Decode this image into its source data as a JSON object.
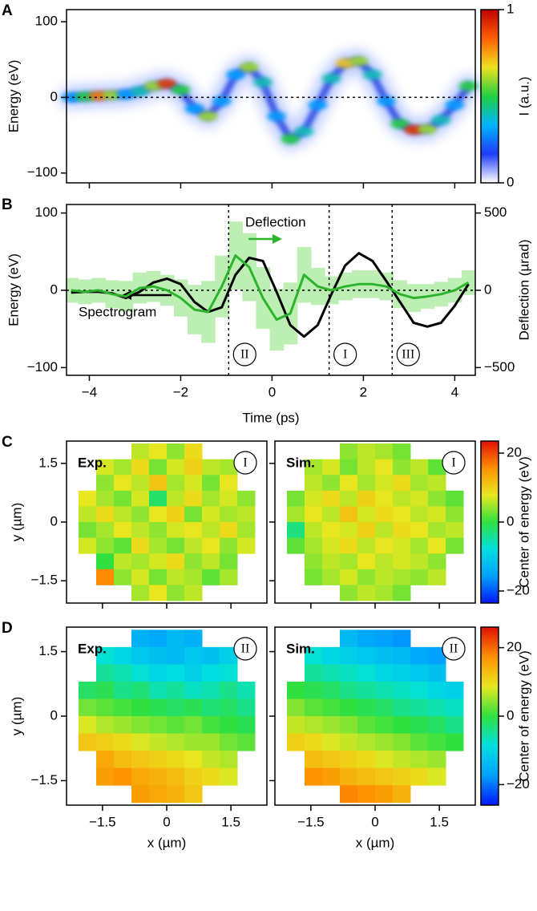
{
  "chart_data": [
    {
      "type": "spectrogram",
      "panel_label": "A",
      "ylabel": "Energy (eV)",
      "x": [
        -4.4,
        -4.1,
        -3.8,
        -3.5,
        -3.2,
        -2.9,
        -2.6,
        -2.3,
        -2.0,
        -1.7,
        -1.4,
        -1.1,
        -0.8,
        -0.5,
        -0.2,
        0.1,
        0.4,
        0.7,
        1.0,
        1.3,
        1.6,
        1.9,
        2.2,
        2.5,
        2.8,
        3.1,
        3.4,
        3.7,
        4.0,
        4.3
      ],
      "values": [
        0,
        1,
        2,
        3,
        4,
        8,
        15,
        18,
        10,
        -15,
        -25,
        -5,
        30,
        40,
        20,
        -25,
        -55,
        -45,
        -10,
        25,
        45,
        48,
        30,
        -5,
        -35,
        -43,
        -42,
        -30,
        -10,
        15
      ],
      "intensity": [
        0.3,
        0.5,
        0.8,
        0.6,
        0.3,
        0.4,
        0.6,
        0.9,
        0.5,
        0.3,
        0.6,
        0.3,
        0.3,
        0.6,
        0.4,
        0.3,
        0.5,
        0.4,
        0.3,
        0.4,
        0.7,
        0.6,
        0.4,
        0.3,
        0.5,
        0.9,
        0.6,
        0.4,
        0.3,
        0.5
      ],
      "xlim": [
        -4.5,
        4.45
      ],
      "xticks": [
        -4,
        -2,
        0,
        2,
        4
      ],
      "ylim": [
        -113,
        116
      ],
      "yticks": [
        {
          "value": -100,
          "label": "−100"
        },
        0,
        100
      ],
      "colorbar": {
        "label": "I (a.u.)",
        "lim": [
          0,
          1
        ],
        "ticks": [
          0,
          1
        ],
        "colormap": [
          "#ffffff",
          "#1e3cff",
          "#00b4ff",
          "#20d040",
          "#f0e020",
          "#ff6000",
          "#c00000"
        ]
      }
    },
    {
      "type": "line",
      "panel_label": "B",
      "xlabel": "Time (ps)",
      "ylabel": "Energy (eV)",
      "y2label": "Deflection (µrad)",
      "x": [
        -4.4,
        -4.1,
        -3.8,
        -3.5,
        -3.2,
        -2.9,
        -2.6,
        -2.3,
        -2.0,
        -1.7,
        -1.4,
        -1.1,
        -0.8,
        -0.5,
        -0.2,
        0.1,
        0.4,
        0.7,
        1.0,
        1.3,
        1.6,
        1.9,
        2.2,
        2.5,
        2.8,
        3.1,
        3.4,
        3.7,
        4.0,
        4.3
      ],
      "series": [
        {
          "name": "Spectrogram",
          "color": "#000000",
          "values": [
            -3,
            -2,
            -2,
            -4,
            -10,
            -2,
            10,
            15,
            8,
            -15,
            -28,
            -22,
            20,
            42,
            38,
            -2,
            -45,
            -60,
            -45,
            -5,
            32,
            48,
            38,
            12,
            -15,
            -42,
            -47,
            -42,
            -20,
            8
          ]
        },
        {
          "name": "Deflection",
          "color": "#2cb52c",
          "band_color": "#bdeeb4",
          "axis": "y2",
          "values": [
            0,
            -10,
            0,
            -25,
            -40,
            15,
            25,
            0,
            -50,
            -125,
            -140,
            25,
            225,
            150,
            -50,
            -190,
            -150,
            100,
            25,
            0,
            25,
            40,
            40,
            25,
            -25,
            -50,
            -40,
            -25,
            0,
            50
          ],
          "errors": [
            80,
            80,
            80,
            90,
            100,
            100,
            100,
            100,
            120,
            160,
            200,
            200,
            220,
            220,
            200,
            200,
            200,
            180,
            120,
            90,
            90,
            90,
            90,
            90,
            90,
            90,
            80,
            80,
            80,
            80
          ]
        }
      ],
      "xlim": [
        -4.5,
        4.45
      ],
      "xticks": [
        {
          "value": -4,
          "label": "−4"
        },
        {
          "value": -2,
          "label": "−2"
        },
        0,
        2,
        4
      ],
      "ylim": [
        -110,
        111
      ],
      "yticks": [
        {
          "value": -100,
          "label": "−100"
        },
        0,
        100
      ],
      "y2lim": [
        -550,
        555
      ],
      "y2ticks": [
        {
          "value": -500,
          "label": "−500"
        },
        0,
        500
      ],
      "markers": [
        {
          "x": -0.95,
          "label": "II"
        },
        {
          "x": 1.25,
          "label": "I"
        },
        {
          "x": 2.63,
          "label": "III"
        }
      ]
    },
    {
      "type": "heatmap",
      "panel_label": "C",
      "title": "Exp.",
      "annotation": "I",
      "ylabel": "y (µm)",
      "xlim": [
        -2.34,
        2.34
      ],
      "xticks": [
        {
          "value": -1.5,
          "label": "−1.5"
        },
        0,
        1.5
      ],
      "ylim": [
        -2.07,
        2.07
      ],
      "yticks": [
        {
          "value": -1.5,
          "label": "−1.5"
        },
        0,
        1.5
      ],
      "grid": [
        [
          null,
          null,
          null,
          6,
          8,
          4,
          9,
          null,
          null,
          null
        ],
        [
          null,
          7,
          5,
          9,
          3,
          7,
          10,
          6,
          5,
          null
        ],
        [
          null,
          4,
          8,
          6,
          11,
          5,
          7,
          3,
          8,
          null
        ],
        [
          8,
          5,
          3,
          7,
          -2,
          6,
          9,
          5,
          7,
          4
        ],
        [
          6,
          9,
          6,
          4,
          8,
          10,
          3,
          7,
          5,
          6
        ],
        [
          3,
          5,
          8,
          6,
          4,
          7,
          8,
          6,
          9,
          5
        ],
        [
          7,
          4,
          2,
          9,
          5,
          3,
          6,
          8,
          4,
          7
        ],
        [
          null,
          0,
          6,
          5,
          7,
          9,
          4,
          6,
          3,
          null
        ],
        [
          null,
          16,
          4,
          7,
          3,
          6,
          5,
          2,
          5,
          null
        ],
        [
          null,
          null,
          null,
          5,
          8,
          4,
          6,
          null,
          null,
          null
        ]
      ]
    },
    {
      "type": "heatmap",
      "title": "Sim.",
      "annotation": "I",
      "xlim": [
        -2.34,
        2.34
      ],
      "xticks": [
        {
          "value": -1.5,
          "label": "−1.5"
        },
        0,
        1.5
      ],
      "ylim": [
        -2.07,
        2.07
      ],
      "yticks": [
        {
          "value": -1.5,
          "label": "−1.5"
        },
        0,
        1.5
      ],
      "grid": [
        [
          null,
          null,
          null,
          4,
          6,
          5,
          3,
          null,
          null,
          null
        ],
        [
          null,
          5,
          7,
          3,
          6,
          8,
          4,
          6,
          2,
          null
        ],
        [
          null,
          6,
          4,
          8,
          5,
          7,
          9,
          5,
          6,
          null
        ],
        [
          3,
          7,
          9,
          6,
          10,
          8,
          6,
          7,
          4,
          2
        ],
        [
          5,
          8,
          6,
          11,
          7,
          9,
          8,
          6,
          7,
          4
        ],
        [
          -3,
          6,
          8,
          7,
          10,
          6,
          9,
          8,
          5,
          6
        ],
        [
          2,
          5,
          7,
          9,
          6,
          8,
          7,
          5,
          8,
          3
        ],
        [
          null,
          4,
          6,
          5,
          8,
          6,
          7,
          6,
          4,
          null
        ],
        [
          null,
          3,
          5,
          7,
          4,
          6,
          5,
          4,
          6,
          null
        ],
        [
          null,
          null,
          null,
          4,
          6,
          5,
          3,
          null,
          null,
          null
        ]
      ],
      "colorbar": {
        "label": "Center of energy (eV)",
        "lim": [
          -23.5,
          23.5
        ],
        "ticks": [
          {
            "value": -20,
            "label": "−20"
          },
          0,
          20
        ],
        "colormap": [
          "#0018ff",
          "#00a0ff",
          "#00e0e0",
          "#30e040",
          "#e8e820",
          "#ff9000",
          "#e01000"
        ]
      }
    },
    {
      "type": "heatmap",
      "panel_label": "D",
      "title": "Exp.",
      "annotation": "II",
      "ylabel": "y (µm)",
      "xlabel": "x (µm)",
      "xlim": [
        -2.34,
        2.34
      ],
      "xticks": [
        {
          "value": -1.5,
          "label": "−1.5"
        },
        0,
        1.5
      ],
      "ylim": [
        -2.07,
        2.07
      ],
      "yticks": [
        {
          "value": -1.5,
          "label": "−1.5"
        },
        0,
        1.5
      ],
      "grid": [
        [
          null,
          null,
          null,
          -15,
          -16,
          -14,
          -15,
          null,
          null,
          null
        ],
        [
          null,
          -8,
          -10,
          -12,
          -13,
          -14,
          -12,
          -13,
          -11,
          null
        ],
        [
          null,
          -5,
          -6,
          -8,
          -10,
          -9,
          -11,
          -9,
          -8,
          null
        ],
        [
          -2,
          -1,
          -4,
          -3,
          -6,
          -5,
          -7,
          -6,
          -4,
          -6
        ],
        [
          3,
          2,
          1,
          0,
          -1,
          -2,
          -1,
          -3,
          -2,
          -4
        ],
        [
          8,
          6,
          5,
          4,
          3,
          2,
          3,
          1,
          0,
          -1
        ],
        [
          12,
          11,
          10,
          8,
          7,
          6,
          5,
          5,
          3,
          2
        ],
        [
          null,
          15,
          13,
          12,
          11,
          10,
          9,
          7,
          6,
          null
        ],
        [
          null,
          16,
          17,
          15,
          14,
          13,
          11,
          10,
          8,
          null
        ],
        [
          null,
          null,
          null,
          16,
          15,
          14,
          12,
          null,
          null,
          null
        ]
      ]
    },
    {
      "type": "heatmap",
      "title": "Sim.",
      "annotation": "II",
      "xlabel": "x (µm)",
      "xlim": [
        -2.34,
        2.34
      ],
      "xticks": [
        {
          "value": -1.5,
          "label": "−1.5"
        },
        0,
        1.5
      ],
      "ylim": [
        -2.07,
        2.07
      ],
      "yticks": [
        {
          "value": -1.5,
          "label": "−1.5"
        },
        0,
        1.5
      ],
      "grid": [
        [
          null,
          null,
          null,
          -14,
          -16,
          -17,
          -18,
          null,
          null,
          null
        ],
        [
          null,
          -8,
          -10,
          -11,
          -12,
          -13,
          -14,
          -16,
          -17,
          null
        ],
        [
          null,
          -5,
          -6,
          -7,
          -8,
          -10,
          -11,
          -12,
          -13,
          null
        ],
        [
          0,
          -1,
          -2,
          -4,
          -5,
          -6,
          -7,
          -8,
          -10,
          -11
        ],
        [
          4,
          2,
          1,
          0,
          -1,
          -2,
          -4,
          -5,
          -6,
          -7
        ],
        [
          7,
          6,
          5,
          4,
          2,
          1,
          0,
          -1,
          -2,
          -4
        ],
        [
          11,
          10,
          8,
          7,
          6,
          5,
          4,
          2,
          1,
          0
        ],
        [
          null,
          13,
          12,
          11,
          10,
          8,
          7,
          6,
          5,
          null
        ],
        [
          null,
          17,
          16,
          14,
          13,
          12,
          11,
          10,
          8,
          null
        ],
        [
          null,
          null,
          null,
          18,
          17,
          16,
          14,
          null,
          null,
          null
        ]
      ],
      "colorbar": {
        "label": "Center of energy (eV)",
        "lim": [
          -26,
          26
        ],
        "ticks": [
          {
            "value": -20,
            "label": "−20"
          },
          0,
          20
        ],
        "colormap": [
          "#0018ff",
          "#00a0ff",
          "#00e0e0",
          "#30e040",
          "#e8e820",
          "#ff9000",
          "#e01000"
        ]
      }
    }
  ]
}
